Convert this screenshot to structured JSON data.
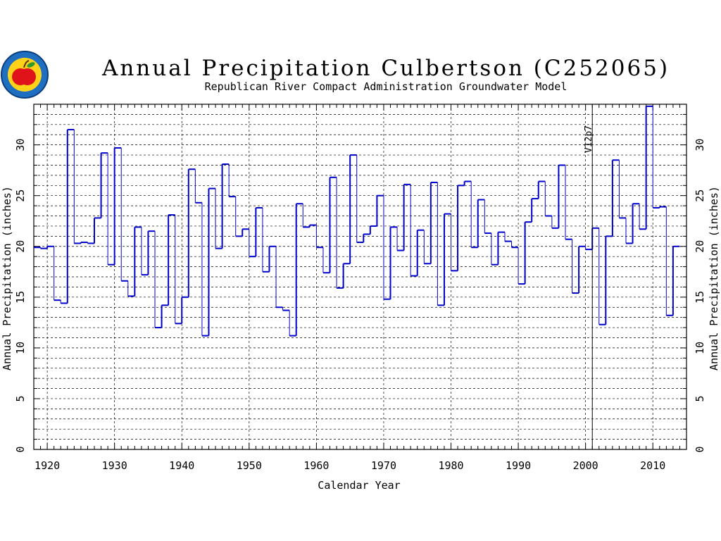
{
  "chart_data": {
    "type": "line",
    "step": true,
    "title": "Annual Precipitation Culbertson (C252065)",
    "subtitle": "Republican River Compact Administration Groundwater Model",
    "xlabel": "Calendar Year",
    "ylabel": "Annual Precipitation (inches)",
    "xlim": [
      1918,
      2015
    ],
    "ylim": [
      0,
      34
    ],
    "x_ticks": [
      "1920",
      "1930",
      "1940",
      "1950",
      "1960",
      "1970",
      "1980",
      "1990",
      "2000",
      "2010"
    ],
    "y_ticks": [
      "0",
      "5",
      "10",
      "15",
      "20",
      "25",
      "30"
    ],
    "grid": true,
    "annotation": {
      "label": "V12p7",
      "x": 2001
    },
    "line_color": "#0000cc",
    "x": [
      1918,
      1919,
      1920,
      1921,
      1922,
      1923,
      1924,
      1925,
      1926,
      1927,
      1928,
      1929,
      1930,
      1931,
      1932,
      1933,
      1934,
      1935,
      1936,
      1937,
      1938,
      1939,
      1940,
      1941,
      1942,
      1943,
      1944,
      1945,
      1946,
      1947,
      1948,
      1949,
      1950,
      1951,
      1952,
      1953,
      1954,
      1955,
      1956,
      1957,
      1958,
      1959,
      1960,
      1961,
      1962,
      1963,
      1964,
      1965,
      1966,
      1967,
      1968,
      1969,
      1970,
      1971,
      1972,
      1973,
      1974,
      1975,
      1976,
      1977,
      1978,
      1979,
      1980,
      1981,
      1982,
      1983,
      1984,
      1985,
      1986,
      1987,
      1988,
      1989,
      1990,
      1991,
      1992,
      1993,
      1994,
      1995,
      1996,
      1997,
      1998,
      1999,
      2000,
      2001,
      2002,
      2003,
      2004,
      2005,
      2006,
      2007,
      2008,
      2009,
      2010,
      2011,
      2012,
      2013
    ],
    "values": [
      19.9,
      19.8,
      20.0,
      14.7,
      14.4,
      31.5,
      20.3,
      20.4,
      20.3,
      22.8,
      29.2,
      18.2,
      29.7,
      16.6,
      15.1,
      21.9,
      17.2,
      21.5,
      12.0,
      14.2,
      23.1,
      12.4,
      15.0,
      27.6,
      24.3,
      11.2,
      25.7,
      19.8,
      28.1,
      24.9,
      21.0,
      21.7,
      19.0,
      23.8,
      17.5,
      20.0,
      14.0,
      13.7,
      11.2,
      24.2,
      21.9,
      22.1,
      19.9,
      17.4,
      26.8,
      15.9,
      18.3,
      29.0,
      20.4,
      21.2,
      22.0,
      25.0,
      14.8,
      21.9,
      19.6,
      26.1,
      17.1,
      21.6,
      18.3,
      26.3,
      14.2,
      23.2,
      17.6,
      26.0,
      26.4,
      19.9,
      24.6,
      21.3,
      18.2,
      21.4,
      20.5,
      19.9,
      16.3,
      22.4,
      24.7,
      26.4,
      23.0,
      21.8,
      28.0,
      20.7,
      15.4,
      20.0,
      19.7,
      21.8,
      12.3,
      21.0,
      28.5,
      22.8,
      20.3,
      24.2,
      21.7,
      33.8,
      23.8,
      23.9,
      13.2,
      20.0
    ]
  }
}
